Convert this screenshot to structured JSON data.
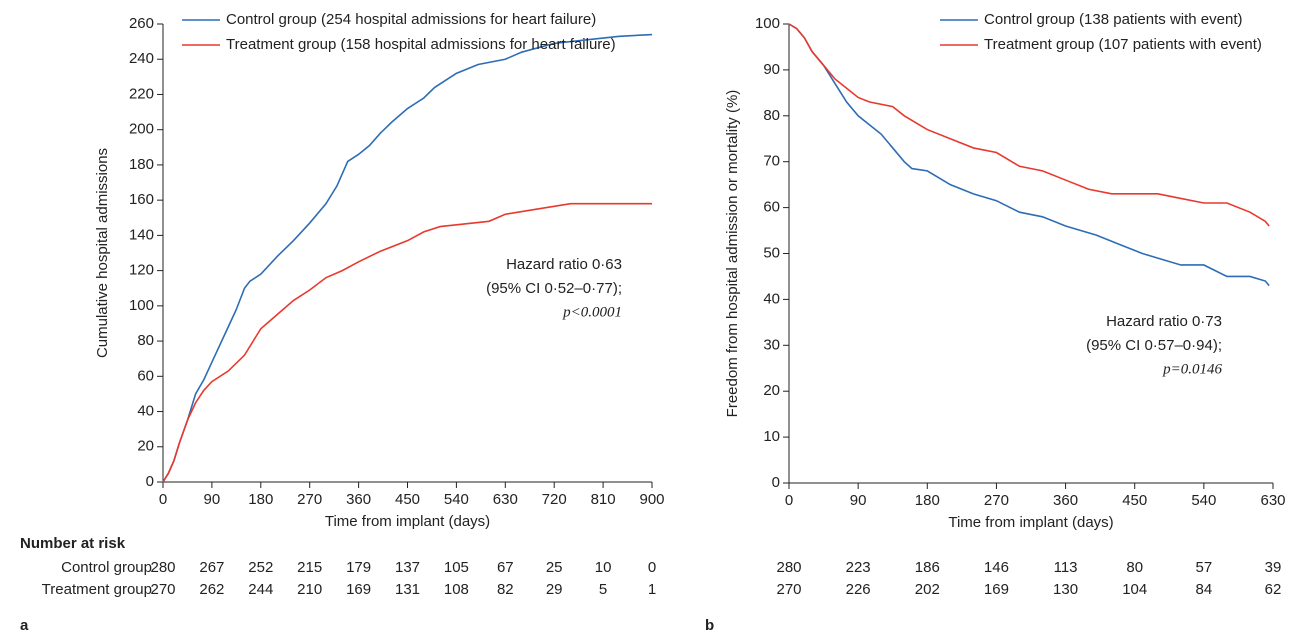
{
  "chart_data": [
    {
      "type": "line",
      "panel_label": "a",
      "x_label": "Time from implant (days)",
      "y_label": "Cumulative hospital admissions",
      "xlim": [
        0,
        900
      ],
      "xticks": [
        0,
        90,
        180,
        270,
        360,
        450,
        540,
        630,
        720,
        810,
        900
      ],
      "ylim": [
        0,
        260
      ],
      "yticks": [
        0,
        20,
        40,
        60,
        80,
        100,
        120,
        140,
        160,
        180,
        200,
        220,
        240,
        260
      ],
      "series": [
        {
          "name": "Control group (254 hospital admissions for heart failure)",
          "color": "#2d6db5",
          "x": [
            0,
            10,
            20,
            30,
            45,
            60,
            75,
            90,
            105,
            120,
            135,
            150,
            160,
            180,
            210,
            240,
            270,
            300,
            320,
            340,
            360,
            380,
            400,
            420,
            450,
            480,
            500,
            540,
            580,
            630,
            660,
            720,
            780,
            840,
            900
          ],
          "values": [
            0,
            5,
            12,
            22,
            35,
            50,
            58,
            68,
            78,
            88,
            98,
            110,
            114,
            118,
            128,
            137,
            147,
            158,
            168,
            182,
            186,
            191,
            198,
            204,
            212,
            218,
            224,
            232,
            237,
            240,
            244,
            249,
            251,
            253,
            254
          ]
        },
        {
          "name": "Treatment group (158 hospital admissions for heart failure)",
          "color": "#e8392e",
          "x": [
            0,
            10,
            20,
            30,
            45,
            60,
            75,
            90,
            120,
            150,
            180,
            210,
            240,
            270,
            300,
            330,
            360,
            400,
            450,
            480,
            510,
            540,
            600,
            630,
            690,
            750,
            900
          ],
          "values": [
            0,
            5,
            12,
            22,
            35,
            45,
            52,
            57,
            63,
            72,
            87,
            95,
            103,
            109,
            116,
            120,
            125,
            131,
            137,
            142,
            145,
            146,
            148,
            152,
            155,
            158,
            158
          ]
        }
      ],
      "annotations": [
        "Hazard ratio 0·63",
        "(95% CI 0·52–0·77);",
        "p<0.0001"
      ],
      "risk_table": {
        "title": "Number at risk",
        "rows": [
          {
            "label": "Control group",
            "values": [
              280,
              267,
              252,
              215,
              179,
              137,
              105,
              67,
              25,
              10,
              0
            ]
          },
          {
            "label": "Treatment group",
            "values": [
              270,
              262,
              244,
              210,
              169,
              131,
              108,
              82,
              29,
              5,
              1
            ]
          }
        ]
      }
    },
    {
      "type": "line",
      "panel_label": "b",
      "x_label": "Time from implant (days)",
      "y_label": "Freedom from hospital admission or mortality (%)",
      "xlim": [
        0,
        630
      ],
      "xticks": [
        0,
        90,
        180,
        270,
        360,
        450,
        540,
        630
      ],
      "ylim": [
        0,
        100
      ],
      "yticks": [
        0,
        10,
        20,
        30,
        40,
        50,
        60,
        70,
        80,
        90,
        100
      ],
      "series": [
        {
          "name": "Control group (138 patients with event)",
          "color": "#2d6db5",
          "x": [
            0,
            10,
            20,
            30,
            45,
            60,
            75,
            90,
            105,
            120,
            135,
            150,
            160,
            180,
            210,
            240,
            270,
            300,
            330,
            360,
            400,
            430,
            460,
            480,
            510,
            540,
            570,
            600,
            620,
            625
          ],
          "values": [
            100,
            99,
            97,
            94,
            91,
            87,
            83,
            80,
            78,
            76,
            73,
            70,
            68.5,
            68,
            65,
            63,
            61.5,
            59,
            58,
            56,
            54,
            52,
            50,
            49,
            47.5,
            47.5,
            45,
            45,
            44,
            43
          ]
        },
        {
          "name": "Treatment group (107 patients with event)",
          "color": "#e8392e",
          "x": [
            0,
            10,
            20,
            30,
            45,
            60,
            75,
            90,
            105,
            135,
            150,
            180,
            210,
            240,
            270,
            300,
            330,
            360,
            390,
            420,
            480,
            510,
            540,
            570,
            600,
            620,
            625
          ],
          "values": [
            100,
            99,
            97,
            94,
            91,
            88,
            86,
            84,
            83,
            82,
            80,
            77,
            75,
            73,
            72,
            69,
            68,
            66,
            64,
            63,
            63,
            62,
            61,
            61,
            59,
            57,
            56
          ]
        }
      ],
      "annotations": [
        "Hazard ratio 0·73",
        "(95% CI 0·57–0·94);",
        "p=0.0146"
      ],
      "risk_table": {
        "rows": [
          {
            "values": [
              280,
              223,
              186,
              146,
              113,
              80,
              57,
              39
            ]
          },
          {
            "values": [
              270,
              226,
              202,
              169,
              130,
              104,
              84,
              62
            ]
          }
        ]
      }
    }
  ]
}
